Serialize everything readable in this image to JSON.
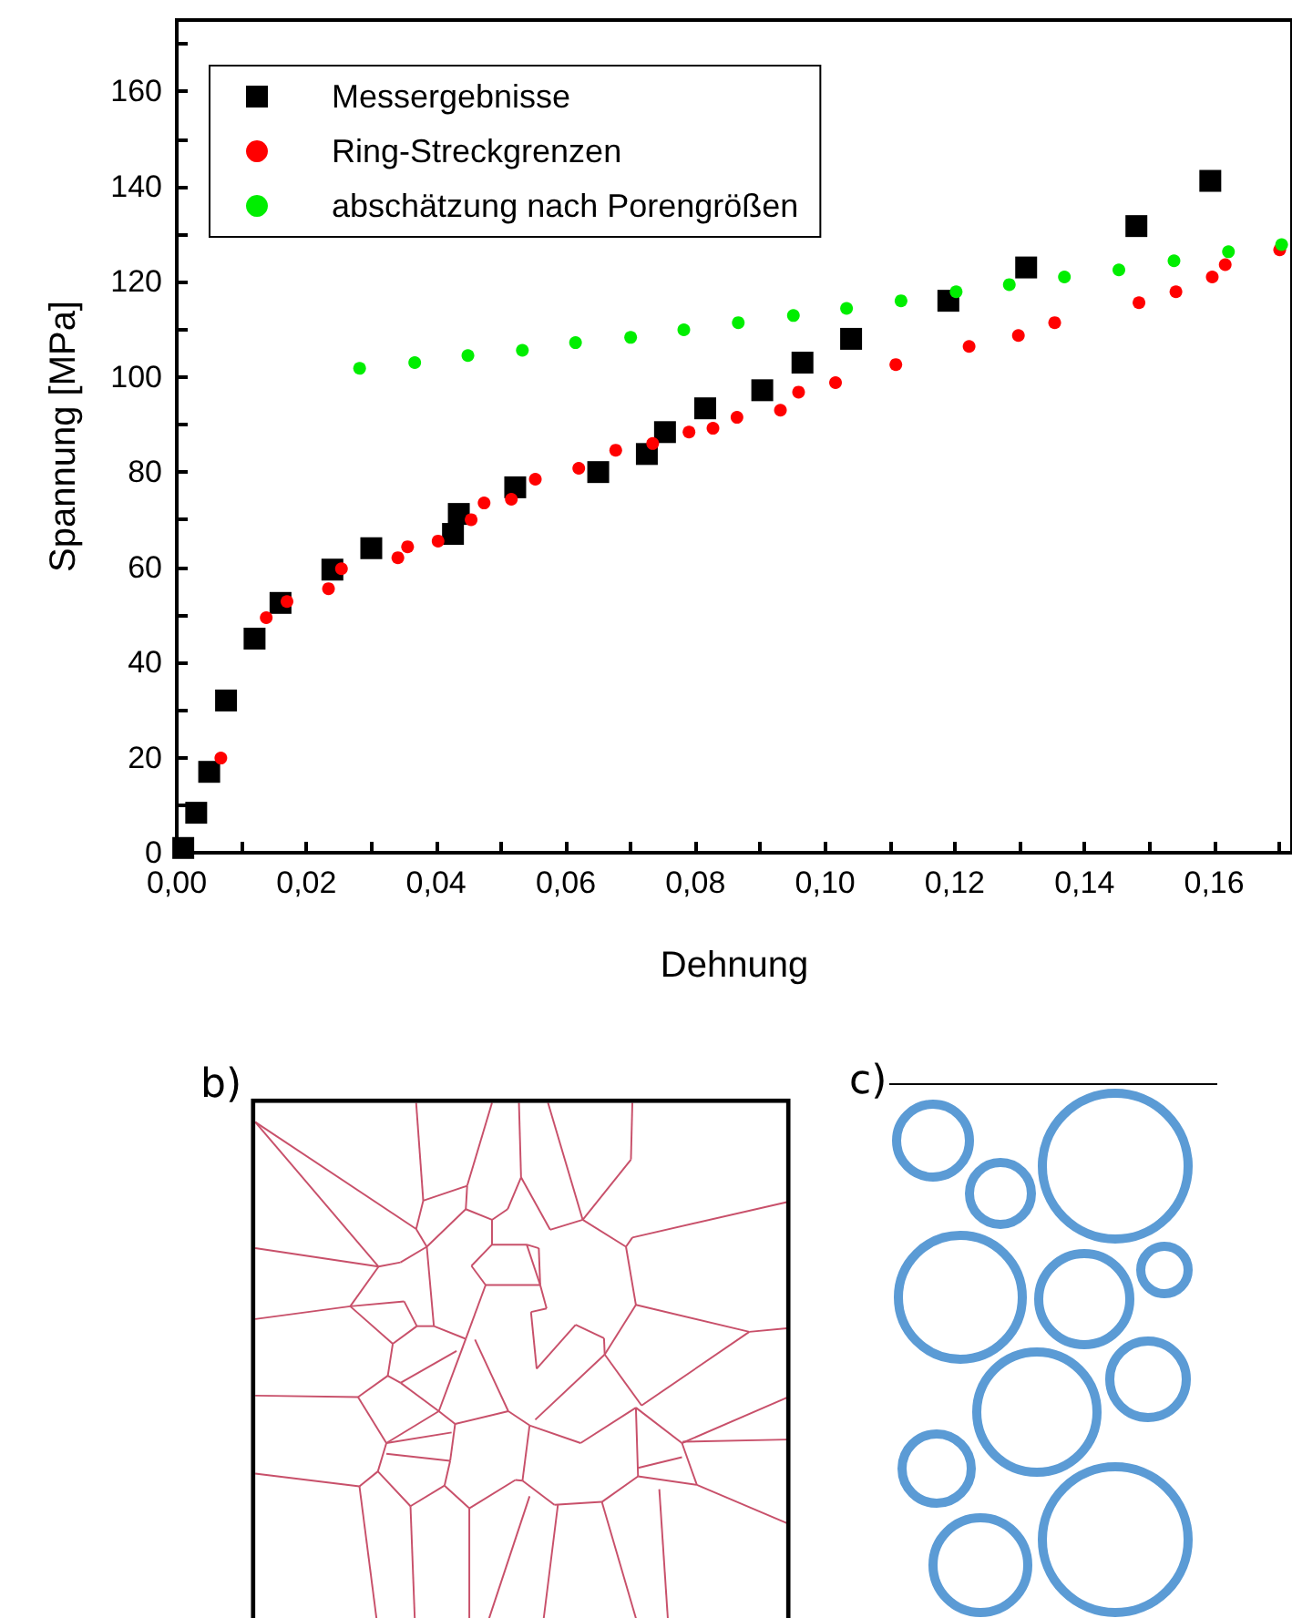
{
  "chart_data": {
    "type": "scatter",
    "xlabel": "Dehnung",
    "ylabel": "Spannung [MPa]",
    "xlim": [
      0,
      0.172
    ],
    "ylim": [
      0,
      175
    ],
    "xticks": [
      {
        "value": 0,
        "label": "0,00"
      },
      {
        "value": 0.01,
        "label": null
      },
      {
        "value": 0.02,
        "label": "0,02"
      },
      {
        "value": 0.03,
        "label": null
      },
      {
        "value": 0.04,
        "label": "0,04"
      },
      {
        "value": 0.05,
        "label": null
      },
      {
        "value": 0.06,
        "label": "0,06"
      },
      {
        "value": 0.07,
        "label": null
      },
      {
        "value": 0.08,
        "label": "0,08"
      },
      {
        "value": 0.09,
        "label": null
      },
      {
        "value": 0.1,
        "label": "0,10"
      },
      {
        "value": 0.11,
        "label": null
      },
      {
        "value": 0.12,
        "label": "0,12"
      },
      {
        "value": 0.13,
        "label": null
      },
      {
        "value": 0.14,
        "label": "0,14"
      },
      {
        "value": 0.15,
        "label": null
      },
      {
        "value": 0.16,
        "label": "0,16"
      },
      {
        "value": 0.17,
        "label": null
      }
    ],
    "yticks": [
      0,
      {
        "value": 10,
        "label": null
      },
      20,
      {
        "value": 30,
        "label": null
      },
      40,
      {
        "value": 50,
        "label": null
      },
      60,
      {
        "value": 70,
        "label": null
      },
      80,
      {
        "value": 90,
        "label": null
      },
      100,
      {
        "value": 110,
        "label": null
      },
      120,
      {
        "value": 130,
        "label": null
      },
      140,
      {
        "value": 150,
        "label": null
      },
      160,
      {
        "value": 170,
        "label": null
      }
    ],
    "grid": false,
    "legend": "top left",
    "annotations": [
      "b)",
      "c)"
    ],
    "series": [
      {
        "name": "Messergebnisse",
        "color": "#000000",
        "marker": "square",
        "x": [
          0.001,
          0.003,
          0.005,
          0.0076,
          0.012,
          0.016,
          0.024,
          0.03,
          0.0426,
          0.0435,
          0.0522,
          0.065,
          0.0725,
          0.0753,
          0.0815,
          0.0903,
          0.0965,
          0.104,
          0.119,
          0.131,
          0.148,
          0.1594
        ],
        "values": [
          1,
          8.4,
          17,
          32,
          45,
          52.5,
          59.5,
          64,
          67,
          71.2,
          76.8,
          80,
          83.8,
          88.4,
          93.4,
          97.2,
          103,
          108,
          116,
          123,
          131.7,
          141.2
        ]
      },
      {
        "name": "Ring-Streckgrenzen",
        "color": "#ff0000",
        "marker": "circle",
        "x": [
          0.0068,
          0.0138,
          0.017,
          0.0234,
          0.0254,
          0.0341,
          0.0356,
          0.0403,
          0.0454,
          0.0474,
          0.0516,
          0.0553,
          0.062,
          0.0677,
          0.0734,
          0.079,
          0.0827,
          0.0864,
          0.0931,
          0.0959,
          0.1016,
          0.1109,
          0.1222,
          0.1298,
          0.1354,
          0.1484,
          0.1541,
          0.1597,
          0.1617,
          0.1701
        ],
        "values": [
          19.9,
          49.4,
          52.8,
          55.5,
          59.7,
          62,
          64.3,
          65.5,
          70,
          73.5,
          74.3,
          78.5,
          80.8,
          84.6,
          86,
          88.4,
          89.2,
          91.5,
          93,
          96.8,
          98.8,
          102.6,
          106.4,
          108.7,
          111.4,
          115.6,
          117.9,
          121,
          123.6,
          126.7
        ]
      },
      {
        "name": "abschätzung nach Porengrößen",
        "color": "#00ee00",
        "marker": "circle",
        "x": [
          0.0282,
          0.0367,
          0.0449,
          0.0533,
          0.0615,
          0.07,
          0.0782,
          0.0866,
          0.0951,
          0.1033,
          0.1117,
          0.1202,
          0.1284,
          0.1369,
          0.1453,
          0.1538,
          0.1622,
          0.1704
        ],
        "values": [
          101.8,
          103,
          104.5,
          105.6,
          107.2,
          108.3,
          109.9,
          111.4,
          112.9,
          114.4,
          116,
          117.9,
          119.4,
          121,
          122.5,
          124.4,
          126.3,
          127.8
        ]
      }
    ]
  }
}
